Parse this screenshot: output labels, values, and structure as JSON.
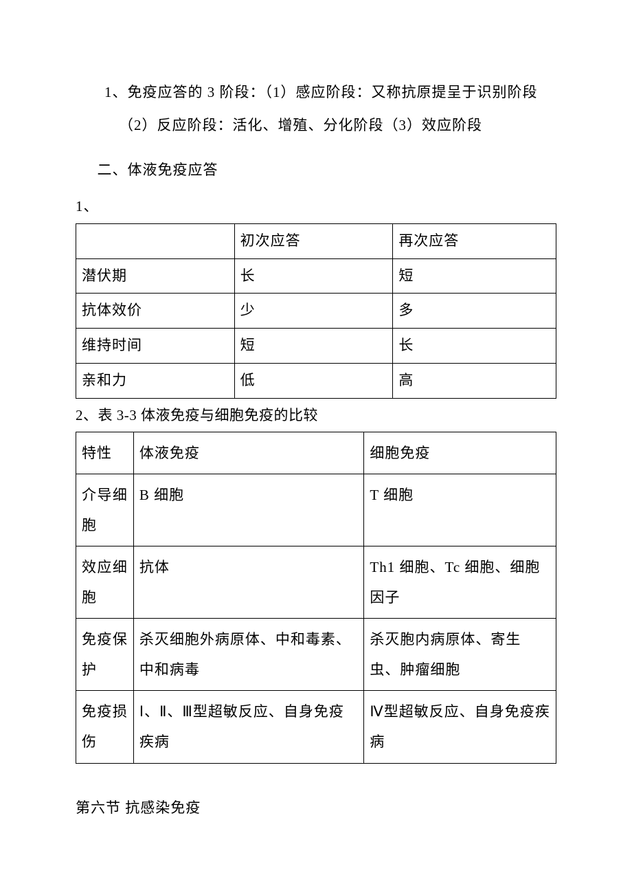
{
  "para1_line1": "1、免疫应答的 3 阶段：（1）感应阶段：又称抗原提呈于识别阶段",
  "para1_line2": "（2）反应阶段：活化、增殖、分化阶段（3）效应阶段",
  "heading2": "二、体液免疫应答",
  "list1_num": "1、",
  "table1": {
    "rows": [
      [
        "",
        "初次应答",
        "再次应答"
      ],
      [
        "潜伏期",
        "长",
        "短"
      ],
      [
        "抗体效价",
        "少",
        "多"
      ],
      [
        "维持时间",
        "短",
        "长"
      ],
      [
        "亲和力",
        "低",
        "高"
      ]
    ]
  },
  "caption2": "2、表 3-3 体液免疫与细胞免疫的比较",
  "table2": {
    "rows": [
      [
        "特性",
        "体液免疫",
        "细胞免疫"
      ],
      [
        "介导细胞",
        "B 细胞",
        "T 细胞"
      ],
      [
        "效应细胞",
        "抗体",
        "Th1 细胞、Tc 细胞、细胞因子"
      ],
      [
        "免疫保护",
        "杀灭细胞外病原体、中和毒素、中和病毒",
        "杀灭胞内病原体、寄生虫、肿瘤细胞"
      ],
      [
        "免疫损伤",
        "Ⅰ、Ⅱ、Ⅲ型超敏反应、自身免疫疾病",
        "Ⅳ型超敏反应、自身免疫疾病"
      ]
    ]
  },
  "footer_heading": "第六节 抗感染免疫"
}
